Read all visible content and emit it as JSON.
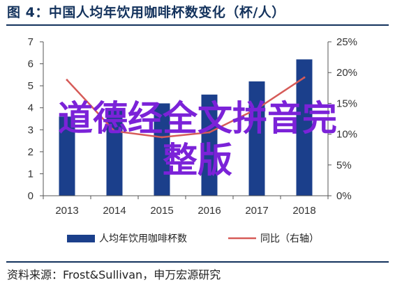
{
  "header": {
    "title": "图 4：中国人均年饮用咖啡杯数变化（杯/人）"
  },
  "footer": {
    "source": "资料来源：Frost&Sullivan，申万宏源研究"
  },
  "overlay": {
    "line1": "道德经全文拼音完",
    "line2": "整版"
  },
  "chart_data": {
    "type": "bar",
    "categories": [
      "2013",
      "2014",
      "2015",
      "2016",
      "2017",
      "2018"
    ],
    "series": [
      {
        "name": "人均年饮用咖啡杯数",
        "type": "bar",
        "axis": "left",
        "color": "#1b3f8b",
        "values": [
          3.6,
          3.9,
          4.2,
          4.6,
          5.2,
          6.2
        ]
      },
      {
        "name": "同比（右轴）",
        "type": "line",
        "axis": "right",
        "color": "#d65b58",
        "values": [
          18.8,
          10.5,
          9.5,
          10.3,
          14.1,
          19.2
        ]
      }
    ],
    "y_left": {
      "min": 0,
      "max": 7,
      "ticks": [
        "0",
        "1",
        "2",
        "3",
        "4",
        "5",
        "6",
        "7"
      ]
    },
    "y_right": {
      "min": 0,
      "max": 25,
      "ticks": [
        "0%",
        "5%",
        "10%",
        "15%",
        "20%",
        "25%"
      ]
    },
    "legend_position": "bottom"
  }
}
